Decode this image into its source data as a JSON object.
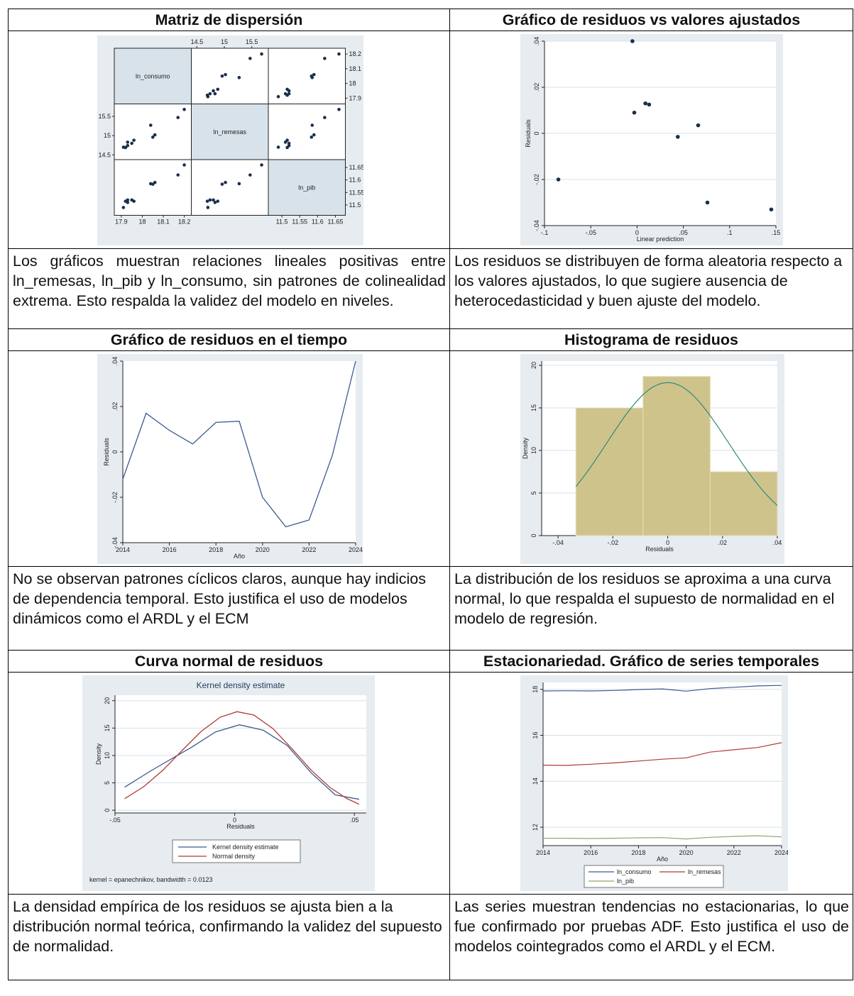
{
  "cells": [
    {
      "title": "Matriz de dispersión",
      "caption": "Los gráficos muestran relaciones lineales positivas entre ln_remesas, ln_pib y ln_consumo, sin patrones de colinealidad extrema. Esto respalda la validez del modelo en niveles."
    },
    {
      "title": "Gráfico de residuos vs valores ajustados",
      "caption": "Los residuos se distribuyen de forma aleatoria respecto a los valores ajustados, lo que sugiere ausencia de heterocedasticidad y buen ajuste del modelo."
    },
    {
      "title": "Gráfico de residuos en el tiempo",
      "caption": "No se observan patrones cíclicos claros, aunque hay indicios de dependencia temporal. Esto justifica el uso de modelos dinámicos como el ARDL y el ECM"
    },
    {
      "title": "Histograma de residuos",
      "caption": "La distribución de los residuos se aproxima a una curva normal, lo que respalda el supuesto de normalidad en el modelo de regresión."
    },
    {
      "title": "Curva normal de residuos",
      "caption": "La densidad empírica de los residuos se ajusta bien a la distribución normal teórica, confirmando la validez del supuesto de normalidad."
    },
    {
      "title": "Estacionariedad. Gráfico de series temporales",
      "caption": "Las series muestran tendencias no estacionarias, lo que fue confirmado por pruebas ADF. Esto justifica el uso de modelos cointegrados como el ARDL y el ECM."
    }
  ],
  "chart_data": [
    {
      "type": "scatter",
      "id": "scatter-matrix",
      "variables": [
        "ln_consumo",
        "ln_remesas",
        "ln_pib"
      ],
      "ticks": {
        "ln_consumo": [
          "17.9",
          "18",
          "18.1",
          "18.2"
        ],
        "ln_remesas": [
          "14.5",
          "15",
          "15.5"
        ],
        "ln_pib": [
          "11.5",
          "11.55",
          "11.6",
          "11.65"
        ]
      },
      "ranges": {
        "ln_consumo": [
          17.88,
          18.22
        ],
        "ln_remesas": [
          14.45,
          15.75
        ],
        "ln_pib": [
          11.47,
          11.67
        ]
      },
      "points": [
        {
          "ln_consumo": 17.91,
          "ln_remesas": 14.7,
          "ln_pib": 11.49
        },
        {
          "ln_consumo": 17.92,
          "ln_remesas": 14.69,
          "ln_pib": 11.515
        },
        {
          "ln_consumo": 17.93,
          "ln_remesas": 14.74,
          "ln_pib": 11.52
        },
        {
          "ln_consumo": 17.95,
          "ln_remesas": 14.8,
          "ln_pib": 11.52
        },
        {
          "ln_consumo": 17.93,
          "ln_remesas": 14.83,
          "ln_pib": 11.51
        },
        {
          "ln_consumo": 17.96,
          "ln_remesas": 14.88,
          "ln_pib": 11.515
        },
        {
          "ln_consumo": 18.05,
          "ln_remesas": 14.96,
          "ln_pib": 11.583
        },
        {
          "ln_consumo": 18.06,
          "ln_remesas": 15.02,
          "ln_pib": 11.59
        },
        {
          "ln_consumo": 18.04,
          "ln_remesas": 15.27,
          "ln_pib": 11.585
        },
        {
          "ln_consumo": 18.17,
          "ln_remesas": 15.47,
          "ln_pib": 11.62
        },
        {
          "ln_consumo": 18.2,
          "ln_remesas": 15.68,
          "ln_pib": 11.66
        }
      ]
    },
    {
      "type": "scatter",
      "id": "resid-vs-fitted",
      "xlabel": "Linear prediction",
      "ylabel": "Residuals",
      "xticks": [
        "-.1",
        "-.05",
        "0",
        ".05",
        ".1",
        ".15"
      ],
      "yticks": [
        "-.04",
        "-.02",
        "0",
        ".02",
        ".04"
      ],
      "xlim": [
        -0.1,
        0.15
      ],
      "ylim": [
        -0.04,
        0.04
      ],
      "x": [
        -0.085,
        -0.005,
        -0.003,
        0.009,
        0.013,
        0.044,
        0.066,
        0.076,
        0.145
      ],
      "y": [
        -0.02,
        0.04,
        0.009,
        0.013,
        0.0125,
        -0.0015,
        0.0035,
        -0.03,
        -0.033
      ]
    },
    {
      "type": "line",
      "id": "resid-over-time",
      "xlabel": "Año",
      "ylabel": "Residuals",
      "xticks": [
        "2014",
        "2016",
        "2018",
        "2020",
        "2022",
        "2024"
      ],
      "yticks": [
        "-.04",
        "-.02",
        "0",
        ".02",
        ".04"
      ],
      "xlim": [
        2014,
        2024
      ],
      "ylim": [
        -0.04,
        0.04
      ],
      "x": [
        2014,
        2015,
        2016,
        2017,
        2018,
        2019,
        2020,
        2021,
        2022,
        2023,
        2024
      ],
      "y": [
        -0.012,
        0.017,
        0.0095,
        0.0035,
        0.013,
        0.0135,
        -0.02,
        -0.033,
        -0.03,
        -0.0015,
        0.04
      ]
    },
    {
      "type": "bar",
      "id": "resid-histogram",
      "xlabel": "Residuals",
      "ylabel": "Density",
      "xticks": [
        "-.04",
        "-.02",
        "0",
        ".02",
        ".04"
      ],
      "yticks": [
        "0",
        "5",
        "10",
        "15",
        "20"
      ],
      "xlim": [
        -0.046,
        0.04
      ],
      "ylim": [
        0,
        20.5
      ],
      "bins": [
        [
          -0.0335,
          -0.009
        ],
        [
          -0.009,
          0.0155
        ],
        [
          0.0155,
          0.04
        ]
      ],
      "values": [
        15,
        18.7,
        7.5
      ],
      "normal": {
        "mean": 0.0,
        "sd": 0.0222
      },
      "colors": {
        "bar": "#cfc38c",
        "curve": "#2e8b7a"
      }
    },
    {
      "type": "line",
      "id": "kernel-density",
      "title": "Kernel density estimate",
      "xlabel": "Residuals",
      "ylabel": "Density",
      "xticks": [
        "-.05",
        "0",
        ".05"
      ],
      "yticks": [
        "0",
        "5",
        "10",
        "15",
        "20"
      ],
      "xlim": [
        -0.05,
        0.055
      ],
      "ylim": [
        -0.5,
        21
      ],
      "series": [
        {
          "name": "Kernel density estimate",
          "color": "#3b5b8e",
          "x": [
            -0.046,
            -0.035,
            -0.018,
            -0.008,
            0.002,
            0.012,
            0.022,
            0.032,
            0.042,
            0.052
          ],
          "y": [
            4.2,
            7.2,
            11.5,
            14.3,
            15.6,
            14.6,
            11.8,
            6.8,
            2.8,
            2.0
          ]
        },
        {
          "name": "Normal density",
          "color": "#b03a36",
          "x": [
            -0.046,
            -0.038,
            -0.03,
            -0.022,
            -0.014,
            -0.006,
            0.001,
            0.008,
            0.016,
            0.024,
            0.032,
            0.04,
            0.047,
            0.052
          ],
          "y": [
            2.1,
            4.3,
            7.3,
            10.9,
            14.4,
            17.0,
            18.0,
            17.4,
            14.9,
            11.2,
            7.3,
            4.1,
            2.1,
            1.1
          ]
        }
      ],
      "note": "kernel = epanechnikov, bandwidth = 0.0123"
    },
    {
      "type": "line",
      "id": "time-series",
      "xlabel": "Año",
      "xticks": [
        "2014",
        "2016",
        "2018",
        "2020",
        "2022",
        "2024"
      ],
      "yticks": [
        "12",
        "14",
        "16",
        "18"
      ],
      "xlim": [
        2014,
        2024
      ],
      "ylim": [
        11.2,
        18.3
      ],
      "x": [
        2014,
        2015,
        2016,
        2017,
        2018,
        2019,
        2020,
        2021,
        2022,
        2023,
        2024
      ],
      "series": [
        {
          "name": "ln_consumo",
          "color": "#3b5b8e",
          "values": [
            17.93,
            17.94,
            17.93,
            17.95,
            17.99,
            18.02,
            17.92,
            18.03,
            18.09,
            18.15,
            18.17
          ]
        },
        {
          "name": "ln_remesas",
          "color": "#b03a36",
          "values": [
            14.7,
            14.69,
            14.74,
            14.8,
            14.88,
            14.96,
            15.02,
            15.27,
            15.37,
            15.47,
            15.68
          ]
        },
        {
          "name": "ln_pib",
          "color": "#8da86b",
          "values": [
            11.52,
            11.52,
            11.51,
            11.52,
            11.54,
            11.55,
            11.49,
            11.56,
            11.6,
            11.63,
            11.58
          ]
        }
      ]
    }
  ]
}
